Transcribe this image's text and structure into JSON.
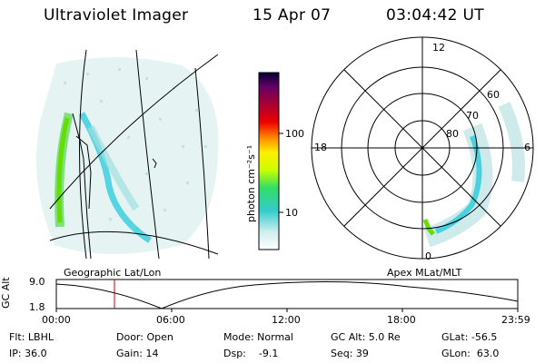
{
  "header": {
    "instrument": "Ultraviolet Imager",
    "date": "15 Apr 07",
    "time": "03:04:42 UT"
  },
  "colorbar": {
    "unit_label": "photon cm⁻²s⁻¹",
    "ticks": [
      "100",
      "10"
    ]
  },
  "left_panel": {
    "label": "Geographic Lat/Lon"
  },
  "right_panel": {
    "label": "Apex MLat/MLT",
    "mlt_labels": {
      "top": "12",
      "left": "18",
      "right": "6",
      "bottom": "0"
    },
    "lat_labels": [
      "60",
      "70",
      "80"
    ]
  },
  "timeline": {
    "ylabel": "GC Alt",
    "yticks": [
      "9.0",
      "1.8"
    ],
    "xticks": [
      "00:00",
      "06:00",
      "12:00",
      "18:00",
      "23:59"
    ]
  },
  "status": {
    "filter": "Flt: LBHL",
    "door": "Door: Open",
    "mode": "Mode: Normal",
    "gc_alt": "GC Alt: 5.0 Re",
    "glat": "GLat: -56.5",
    "ip": "IP: 36.0",
    "gain": "Gain: 14",
    "dsp": "Dsp:    -9.1",
    "seq": "Seq: 39",
    "glon": "GLon:  63.0"
  },
  "colors": {
    "aurora_green": "#66dd00",
    "aurora_cyan": "#33ccdd",
    "background_speckle": "#cfeaea",
    "time_marker": "#cc0000"
  }
}
